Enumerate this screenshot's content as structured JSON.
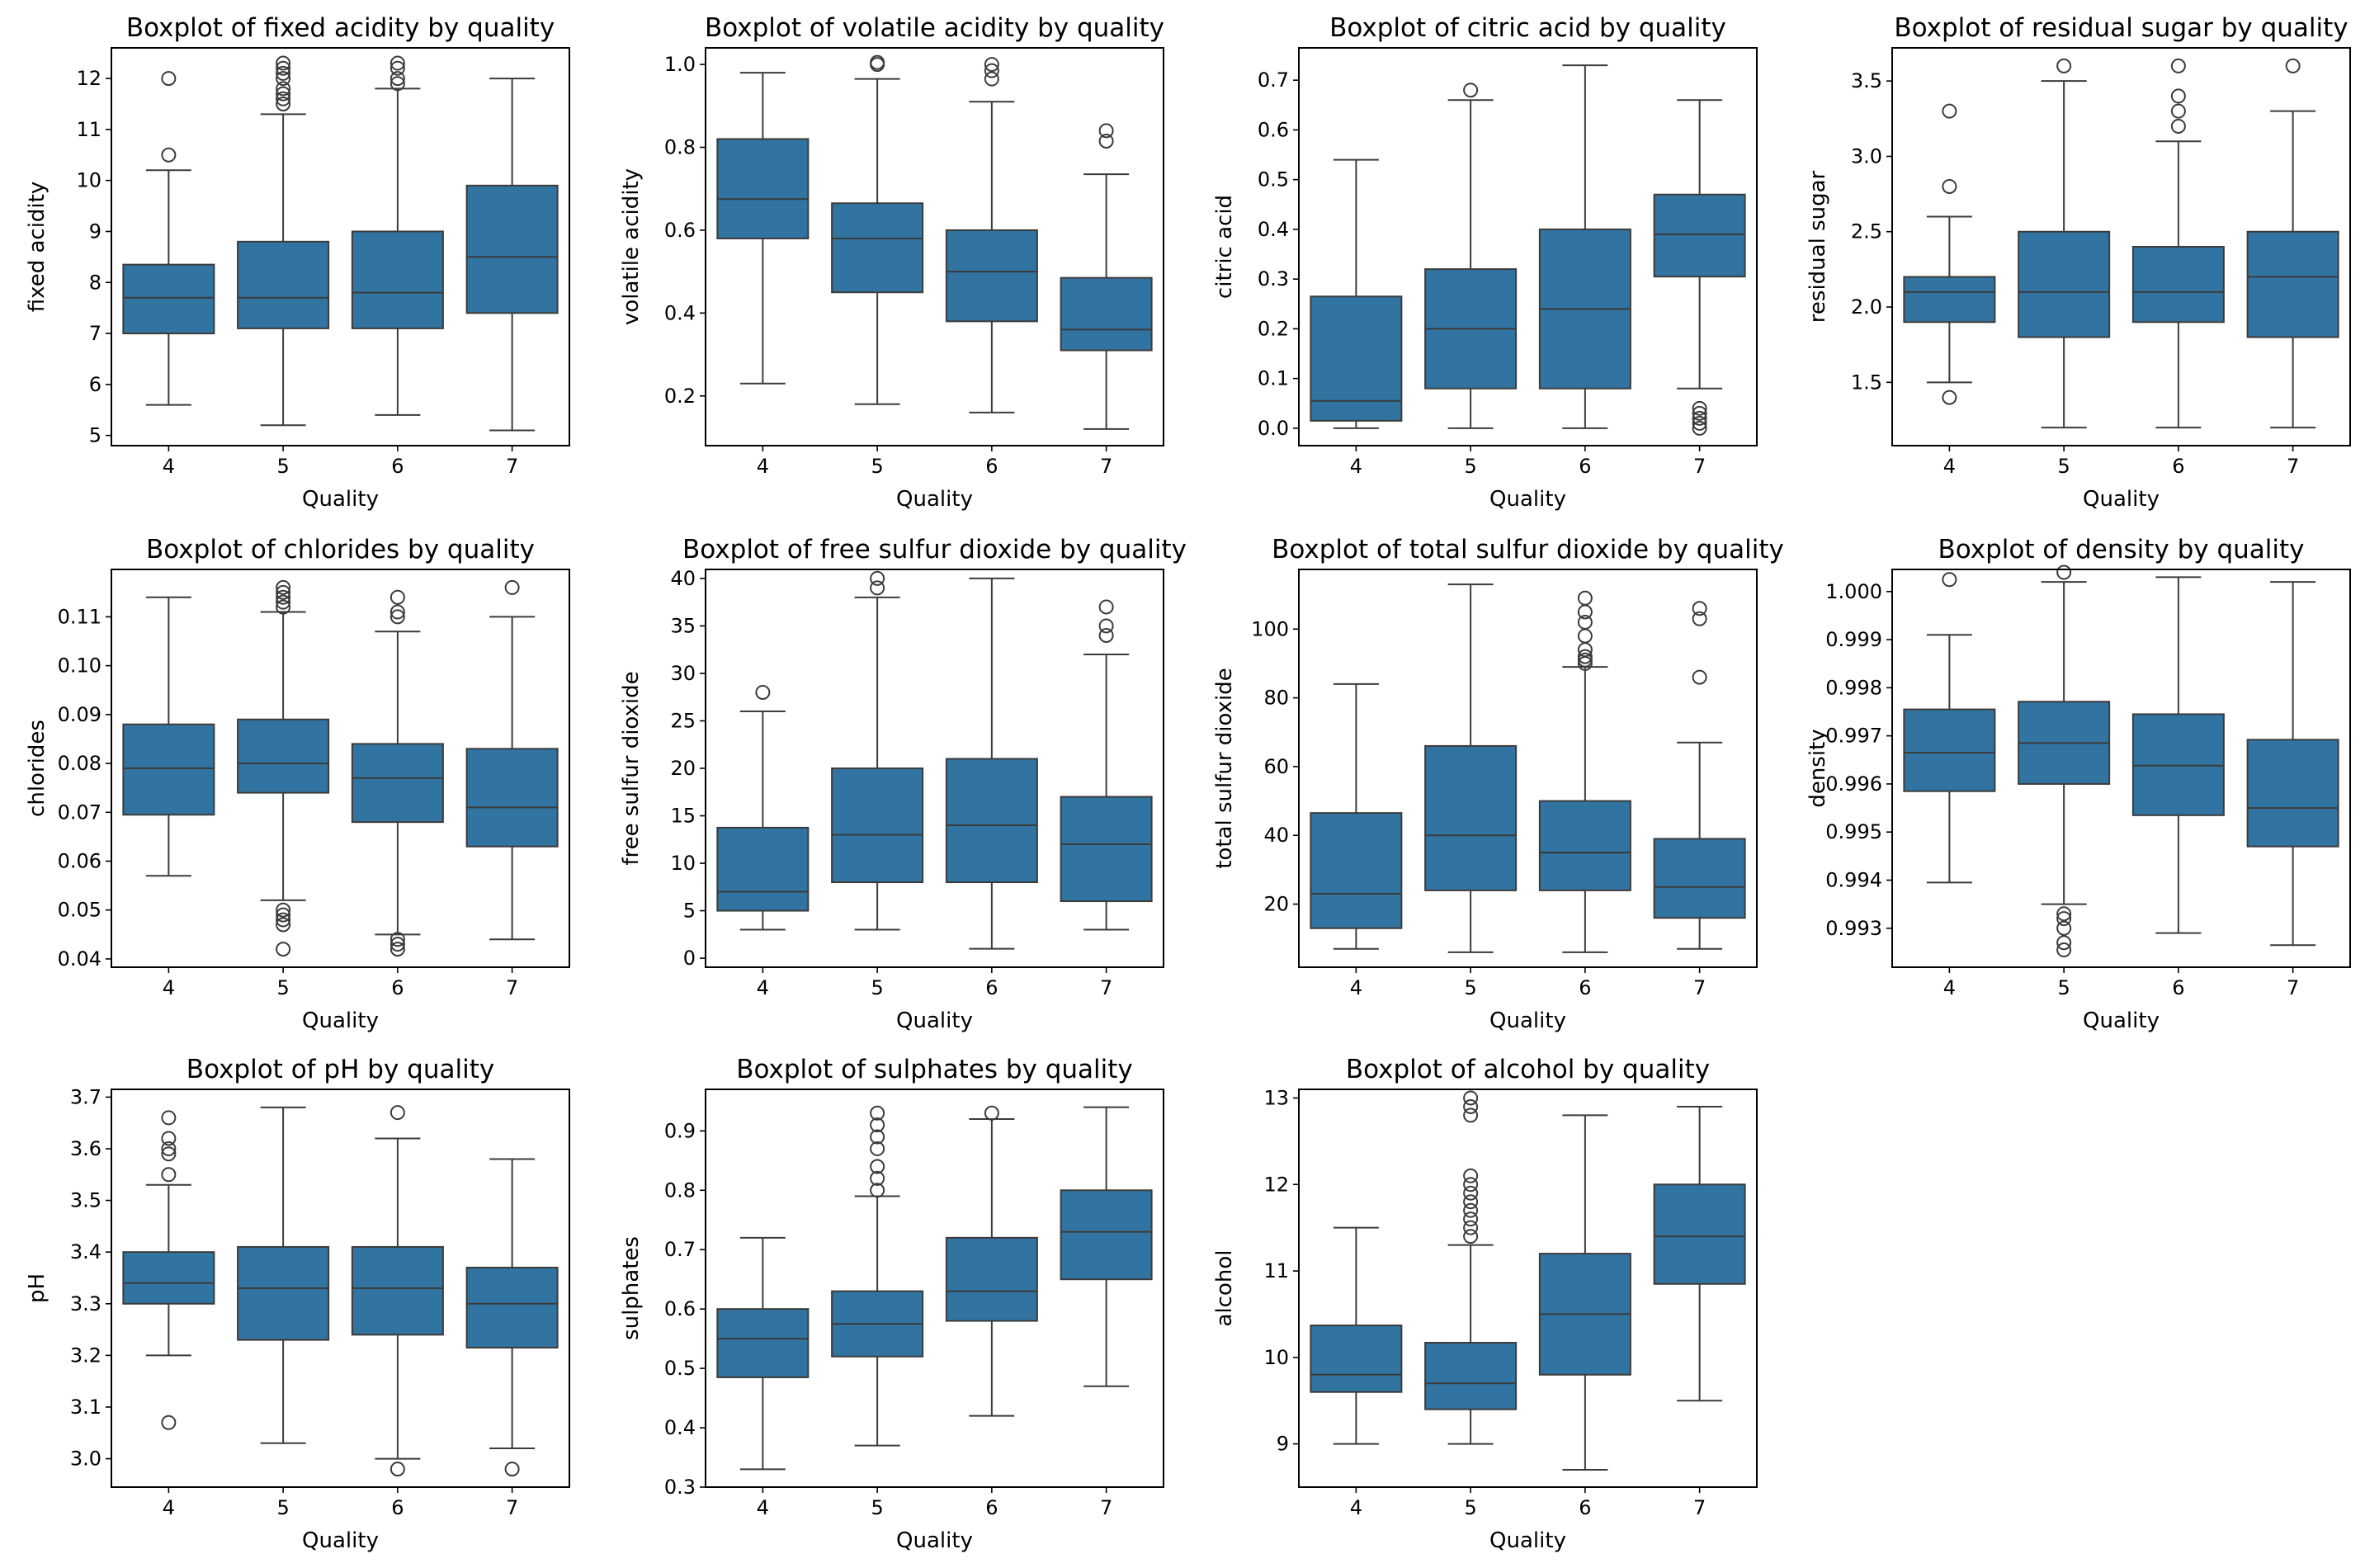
{
  "figure": {
    "background": "#ffffff"
  },
  "style": {
    "box_fill": "#3274a1",
    "line_color": "#3b3b3b",
    "frame_color": "#000000"
  },
  "chart_data": [
    {
      "type": "box",
      "title": "Boxplot of fixed acidity by quality",
      "xlabel": "Quality",
      "ylabel": "fixed acidity",
      "categories": [
        "4",
        "5",
        "6",
        "7"
      ],
      "ylim": [
        4.8,
        12.6
      ],
      "yticks": [
        5,
        6,
        7,
        8,
        9,
        10,
        11,
        12
      ],
      "ytick_labels": [
        "5",
        "6",
        "7",
        "8",
        "9",
        "10",
        "11",
        "12"
      ],
      "boxes": [
        {
          "whisker_low": 5.6,
          "q1": 7.0,
          "median": 7.7,
          "q3": 8.35,
          "whisker_high": 10.2,
          "outliers": [
            10.5,
            12.0
          ]
        },
        {
          "whisker_low": 5.2,
          "q1": 7.1,
          "median": 7.7,
          "q3": 8.8,
          "whisker_high": 11.3,
          "outliers": [
            11.5,
            11.6,
            11.7,
            11.8,
            12.0,
            12.1,
            12.2,
            12.3
          ]
        },
        {
          "whisker_low": 5.4,
          "q1": 7.1,
          "median": 7.8,
          "q3": 9.0,
          "whisker_high": 11.8,
          "outliers": [
            11.9,
            12.0,
            12.2,
            12.3
          ]
        },
        {
          "whisker_low": 5.1,
          "q1": 7.4,
          "median": 8.5,
          "q3": 9.9,
          "whisker_high": 12.0,
          "outliers": []
        }
      ]
    },
    {
      "type": "box",
      "title": "Boxplot of volatile acidity by quality",
      "xlabel": "Quality",
      "ylabel": "volatile acidity",
      "categories": [
        "4",
        "5",
        "6",
        "7"
      ],
      "ylim": [
        0.08,
        1.04
      ],
      "yticks": [
        0.2,
        0.4,
        0.6,
        0.8,
        1.0
      ],
      "ytick_labels": [
        "0.2",
        "0.4",
        "0.6",
        "0.8",
        "1.0"
      ],
      "boxes": [
        {
          "whisker_low": 0.23,
          "q1": 0.58,
          "median": 0.675,
          "q3": 0.82,
          "whisker_high": 0.98,
          "outliers": []
        },
        {
          "whisker_low": 0.18,
          "q1": 0.45,
          "median": 0.58,
          "q3": 0.665,
          "whisker_high": 0.965,
          "outliers": [
            1.0,
            1.005
          ]
        },
        {
          "whisker_low": 0.16,
          "q1": 0.38,
          "median": 0.5,
          "q3": 0.6,
          "whisker_high": 0.91,
          "outliers": [
            0.965,
            0.985,
            1.0
          ]
        },
        {
          "whisker_low": 0.12,
          "q1": 0.31,
          "median": 0.36,
          "q3": 0.485,
          "whisker_high": 0.735,
          "outliers": [
            0.815,
            0.84
          ]
        }
      ]
    },
    {
      "type": "box",
      "title": "Boxplot of citric acid by quality",
      "xlabel": "Quality",
      "ylabel": "citric acid",
      "categories": [
        "4",
        "5",
        "6",
        "7"
      ],
      "ylim": [
        -0.035,
        0.765
      ],
      "yticks": [
        0.0,
        0.1,
        0.2,
        0.3,
        0.4,
        0.5,
        0.6,
        0.7
      ],
      "ytick_labels": [
        "0.0",
        "0.1",
        "0.2",
        "0.3",
        "0.4",
        "0.5",
        "0.6",
        "0.7"
      ],
      "boxes": [
        {
          "whisker_low": 0.0,
          "q1": 0.015,
          "median": 0.055,
          "q3": 0.265,
          "whisker_high": 0.54,
          "outliers": []
        },
        {
          "whisker_low": 0.0,
          "q1": 0.08,
          "median": 0.2,
          "q3": 0.32,
          "whisker_high": 0.66,
          "outliers": [
            0.68
          ]
        },
        {
          "whisker_low": 0.0,
          "q1": 0.08,
          "median": 0.24,
          "q3": 0.4,
          "whisker_high": 0.73,
          "outliers": []
        },
        {
          "whisker_low": 0.08,
          "q1": 0.305,
          "median": 0.39,
          "q3": 0.47,
          "whisker_high": 0.66,
          "outliers": [
            0.0,
            0.01,
            0.02,
            0.03,
            0.04
          ]
        }
      ]
    },
    {
      "type": "box",
      "title": "Boxplot of residual sugar by quality",
      "xlabel": "Quality",
      "ylabel": "residual sugar",
      "categories": [
        "4",
        "5",
        "6",
        "7"
      ],
      "ylim": [
        1.08,
        3.72
      ],
      "yticks": [
        1.5,
        2.0,
        2.5,
        3.0,
        3.5
      ],
      "ytick_labels": [
        "1.5",
        "2.0",
        "2.5",
        "3.0",
        "3.5"
      ],
      "boxes": [
        {
          "whisker_low": 1.5,
          "q1": 1.9,
          "median": 2.1,
          "q3": 2.2,
          "whisker_high": 2.6,
          "outliers": [
            1.4,
            2.8,
            3.3
          ]
        },
        {
          "whisker_low": 1.2,
          "q1": 1.8,
          "median": 2.1,
          "q3": 2.5,
          "whisker_high": 3.5,
          "outliers": [
            3.6
          ]
        },
        {
          "whisker_low": 1.2,
          "q1": 1.9,
          "median": 2.1,
          "q3": 2.4,
          "whisker_high": 3.1,
          "outliers": [
            3.2,
            3.3,
            3.4,
            3.6
          ]
        },
        {
          "whisker_low": 1.2,
          "q1": 1.8,
          "median": 2.2,
          "q3": 2.5,
          "whisker_high": 3.3,
          "outliers": [
            3.6
          ]
        }
      ]
    },
    {
      "type": "box",
      "title": "Boxplot of chlorides by quality",
      "xlabel": "Quality",
      "ylabel": "chlorides",
      "categories": [
        "4",
        "5",
        "6",
        "7"
      ],
      "ylim": [
        0.0383,
        0.1197
      ],
      "yticks": [
        0.04,
        0.05,
        0.06,
        0.07,
        0.08,
        0.09,
        0.1,
        0.11
      ],
      "ytick_labels": [
        "0.04",
        "0.05",
        "0.06",
        "0.07",
        "0.08",
        "0.09",
        "0.10",
        "0.11"
      ],
      "boxes": [
        {
          "whisker_low": 0.057,
          "q1": 0.0695,
          "median": 0.079,
          "q3": 0.088,
          "whisker_high": 0.114,
          "outliers": []
        },
        {
          "whisker_low": 0.052,
          "q1": 0.074,
          "median": 0.08,
          "q3": 0.089,
          "whisker_high": 0.111,
          "outliers": [
            0.042,
            0.047,
            0.048,
            0.049,
            0.05,
            0.112,
            0.113,
            0.114,
            0.115,
            0.116
          ]
        },
        {
          "whisker_low": 0.045,
          "q1": 0.068,
          "median": 0.077,
          "q3": 0.084,
          "whisker_high": 0.107,
          "outliers": [
            0.042,
            0.043,
            0.044,
            0.11,
            0.111,
            0.114
          ]
        },
        {
          "whisker_low": 0.044,
          "q1": 0.063,
          "median": 0.071,
          "q3": 0.083,
          "whisker_high": 0.11,
          "outliers": [
            0.116
          ]
        }
      ]
    },
    {
      "type": "box",
      "title": "Boxplot of free sulfur dioxide by quality",
      "xlabel": "Quality",
      "ylabel": "free sulfur dioxide",
      "categories": [
        "4",
        "5",
        "6",
        "7"
      ],
      "ylim": [
        -0.95,
        40.95
      ],
      "yticks": [
        0,
        5,
        10,
        15,
        20,
        25,
        30,
        35,
        40
      ],
      "ytick_labels": [
        "0",
        "5",
        "10",
        "15",
        "20",
        "25",
        "30",
        "35",
        "40"
      ],
      "boxes": [
        {
          "whisker_low": 3,
          "q1": 5,
          "median": 7,
          "q3": 13.75,
          "whisker_high": 26,
          "outliers": [
            28
          ]
        },
        {
          "whisker_low": 3,
          "q1": 8,
          "median": 13,
          "q3": 20,
          "whisker_high": 38,
          "outliers": [
            39,
            40
          ]
        },
        {
          "whisker_low": 1,
          "q1": 8,
          "median": 14,
          "q3": 21,
          "whisker_high": 40,
          "outliers": []
        },
        {
          "whisker_low": 3,
          "q1": 6,
          "median": 12,
          "q3": 17,
          "whisker_high": 32,
          "outliers": [
            34,
            35,
            37
          ]
        }
      ]
    },
    {
      "type": "box",
      "title": "Boxplot of total sulfur dioxide by quality",
      "xlabel": "Quality",
      "ylabel": "total sulfur dioxide",
      "categories": [
        "4",
        "5",
        "6",
        "7"
      ],
      "ylim": [
        1.65,
        117.35
      ],
      "yticks": [
        20,
        40,
        60,
        80,
        100
      ],
      "ytick_labels": [
        "20",
        "40",
        "60",
        "80",
        "100"
      ],
      "boxes": [
        {
          "whisker_low": 7,
          "q1": 13,
          "median": 23,
          "q3": 46.5,
          "whisker_high": 84,
          "outliers": []
        },
        {
          "whisker_low": 6,
          "q1": 24,
          "median": 40,
          "q3": 66,
          "whisker_high": 113,
          "outliers": []
        },
        {
          "whisker_low": 6,
          "q1": 24,
          "median": 35,
          "q3": 50,
          "whisker_high": 89,
          "outliers": [
            90,
            91,
            92,
            94,
            98,
            102,
            105,
            109
          ]
        },
        {
          "whisker_low": 7,
          "q1": 16,
          "median": 25,
          "q3": 39,
          "whisker_high": 67,
          "outliers": [
            86,
            103,
            106
          ]
        }
      ]
    },
    {
      "type": "box",
      "title": "Boxplot of density by quality",
      "xlabel": "Quality",
      "ylabel": "density",
      "categories": [
        "4",
        "5",
        "6",
        "7"
      ],
      "ylim": [
        0.99219,
        1.00046
      ],
      "yticks": [
        0.993,
        0.994,
        0.995,
        0.996,
        0.997,
        0.998,
        0.999,
        1.0
      ],
      "ytick_labels": [
        "0.993",
        "0.994",
        "0.995",
        "0.996",
        "0.997",
        "0.998",
        "0.999",
        "1.000"
      ],
      "boxes": [
        {
          "whisker_low": 0.99395,
          "q1": 0.99585,
          "median": 0.99665,
          "q3": 0.99755,
          "whisker_high": 0.9991,
          "outliers": [
            1.00025
          ]
        },
        {
          "whisker_low": 0.9935,
          "q1": 0.996,
          "median": 0.99685,
          "q3": 0.99771,
          "whisker_high": 1.0002,
          "outliers": [
            0.99255,
            0.9927,
            0.993,
            0.9932,
            0.9933,
            1.0004
          ]
        },
        {
          "whisker_low": 0.9929,
          "q1": 0.99535,
          "median": 0.99638,
          "q3": 0.99745,
          "whisker_high": 1.0003,
          "outliers": []
        },
        {
          "whisker_low": 0.99265,
          "q1": 0.9947,
          "median": 0.9955,
          "q3": 0.99692,
          "whisker_high": 1.0002,
          "outliers": []
        }
      ]
    },
    {
      "type": "box",
      "title": "Boxplot of pH by quality",
      "xlabel": "Quality",
      "ylabel": "pH",
      "categories": [
        "4",
        "5",
        "6",
        "7"
      ],
      "ylim": [
        2.945,
        3.715
      ],
      "yticks": [
        3.0,
        3.1,
        3.2,
        3.3,
        3.4,
        3.5,
        3.6,
        3.7
      ],
      "ytick_labels": [
        "3.0",
        "3.1",
        "3.2",
        "3.3",
        "3.4",
        "3.5",
        "3.6",
        "3.7"
      ],
      "boxes": [
        {
          "whisker_low": 3.2,
          "q1": 3.3,
          "median": 3.34,
          "q3": 3.4,
          "whisker_high": 3.53,
          "outliers": [
            3.07,
            3.55,
            3.59,
            3.6,
            3.62,
            3.66
          ]
        },
        {
          "whisker_low": 3.03,
          "q1": 3.23,
          "median": 3.33,
          "q3": 3.41,
          "whisker_high": 3.68,
          "outliers": []
        },
        {
          "whisker_low": 3.0,
          "q1": 3.24,
          "median": 3.33,
          "q3": 3.41,
          "whisker_high": 3.62,
          "outliers": [
            2.98,
            3.67
          ]
        },
        {
          "whisker_low": 3.02,
          "q1": 3.215,
          "median": 3.3,
          "q3": 3.37,
          "whisker_high": 3.58,
          "outliers": [
            2.98
          ]
        }
      ]
    },
    {
      "type": "box",
      "title": "Boxplot of sulphates by quality",
      "xlabel": "Quality",
      "ylabel": "sulphates",
      "categories": [
        "4",
        "5",
        "6",
        "7"
      ],
      "ylim": [
        0.3,
        0.97
      ],
      "yticks": [
        0.3,
        0.4,
        0.5,
        0.6,
        0.7,
        0.8,
        0.9
      ],
      "ytick_labels": [
        "0.3",
        "0.4",
        "0.5",
        "0.6",
        "0.7",
        "0.8",
        "0.9"
      ],
      "boxes": [
        {
          "whisker_low": 0.33,
          "q1": 0.485,
          "median": 0.55,
          "q3": 0.6,
          "whisker_high": 0.72,
          "outliers": []
        },
        {
          "whisker_low": 0.37,
          "q1": 0.52,
          "median": 0.575,
          "q3": 0.63,
          "whisker_high": 0.79,
          "outliers": [
            0.8,
            0.82,
            0.84,
            0.87,
            0.89,
            0.91,
            0.93
          ]
        },
        {
          "whisker_low": 0.42,
          "q1": 0.58,
          "median": 0.63,
          "q3": 0.72,
          "whisker_high": 0.92,
          "outliers": [
            0.93
          ]
        },
        {
          "whisker_low": 0.47,
          "q1": 0.65,
          "median": 0.73,
          "q3": 0.8,
          "whisker_high": 0.94,
          "outliers": []
        }
      ]
    },
    {
      "type": "box",
      "title": "Boxplot of alcohol by quality",
      "xlabel": "Quality",
      "ylabel": "alcohol",
      "categories": [
        "4",
        "5",
        "6",
        "7"
      ],
      "ylim": [
        8.5,
        13.1
      ],
      "yticks": [
        9,
        10,
        11,
        12,
        13
      ],
      "ytick_labels": [
        "9",
        "10",
        "11",
        "12",
        "13"
      ],
      "boxes": [
        {
          "whisker_low": 9.0,
          "q1": 9.6,
          "median": 9.8,
          "q3": 10.37,
          "whisker_high": 11.5,
          "outliers": []
        },
        {
          "whisker_low": 9.0,
          "q1": 9.4,
          "median": 9.7,
          "q3": 10.17,
          "whisker_high": 11.3,
          "outliers": [
            11.4,
            11.5,
            11.6,
            11.7,
            11.8,
            11.9,
            12.0,
            12.1,
            12.8,
            12.9,
            13.0
          ]
        },
        {
          "whisker_low": 8.7,
          "q1": 9.8,
          "median": 10.5,
          "q3": 11.2,
          "whisker_high": 12.8,
          "outliers": []
        },
        {
          "whisker_low": 9.5,
          "q1": 10.85,
          "median": 11.4,
          "q3": 12.0,
          "whisker_high": 12.9,
          "outliers": []
        }
      ]
    }
  ]
}
